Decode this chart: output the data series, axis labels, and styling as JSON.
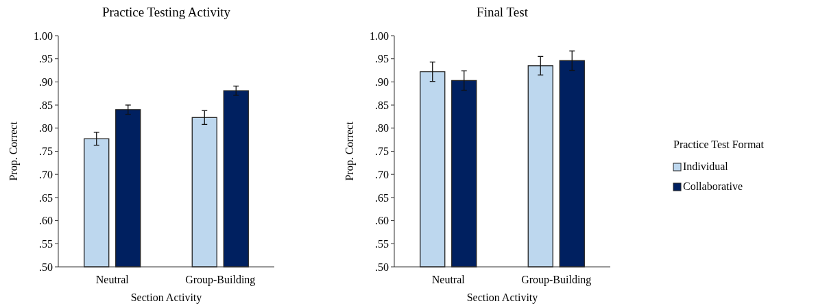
{
  "chart_data": [
    {
      "type": "bar",
      "title": "Practice Testing Activity",
      "xlabel": "Section Activity",
      "ylabel": "Prop. Correct",
      "categories": [
        "Neutral",
        "Group-Building"
      ],
      "ylim": [
        0.5,
        1.0
      ],
      "yticks": [
        {
          "value": 0.5,
          "label": ".50"
        },
        {
          "value": 0.55,
          "label": ".55"
        },
        {
          "value": 0.6,
          "label": ".60"
        },
        {
          "value": 0.65,
          "label": ".65"
        },
        {
          "value": 0.7,
          "label": ".70"
        },
        {
          "value": 0.75,
          "label": ".75"
        },
        {
          "value": 0.8,
          "label": ".80"
        },
        {
          "value": 0.85,
          "label": ".85"
        },
        {
          "value": 0.9,
          "label": ".90"
        },
        {
          "value": 0.95,
          "label": ".95"
        },
        {
          "value": 1.0,
          "label": "1.00"
        }
      ],
      "series": [
        {
          "color": "#bdd7ee",
          "values": [
            0.777,
            0.823
          ],
          "errors": [
            0.014,
            0.015
          ]
        },
        {
          "color": "#002060",
          "values": [
            0.84,
            0.881
          ],
          "errors": [
            0.01,
            0.01
          ]
        }
      ]
    },
    {
      "type": "bar",
      "title": "Final Test",
      "xlabel": "Section Activity",
      "ylabel": "Prop. Correct",
      "categories": [
        "Neutral",
        "Group-Building"
      ],
      "ylim": [
        0.5,
        1.0
      ],
      "yticks": [
        {
          "value": 0.5,
          "label": ".50"
        },
        {
          "value": 0.55,
          "label": ".55"
        },
        {
          "value": 0.6,
          "label": ".60"
        },
        {
          "value": 0.65,
          "label": ".65"
        },
        {
          "value": 0.7,
          "label": ".70"
        },
        {
          "value": 0.75,
          "label": ".75"
        },
        {
          "value": 0.8,
          "label": ".80"
        },
        {
          "value": 0.85,
          "label": ".85"
        },
        {
          "value": 0.9,
          "label": ".90"
        },
        {
          "value": 0.95,
          "label": ".95"
        },
        {
          "value": 1.0,
          "label": "1.00"
        }
      ],
      "legend": "right",
      "legend_title": "Practice Test Format",
      "series": [
        {
          "name": "Individual",
          "color": "#bdd7ee",
          "values": [
            0.922,
            0.935
          ],
          "errors": [
            0.021,
            0.02
          ]
        },
        {
          "name": "Collaborative",
          "color": "#002060",
          "values": [
            0.903,
            0.946
          ],
          "errors": [
            0.021,
            0.021
          ]
        }
      ]
    }
  ]
}
